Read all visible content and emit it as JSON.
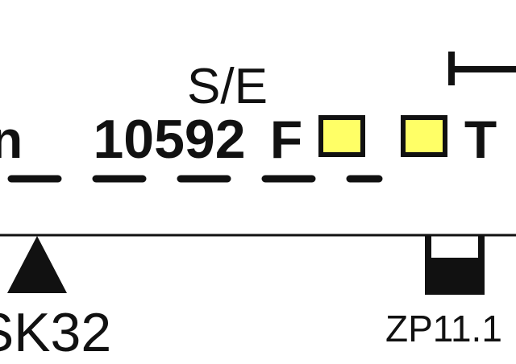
{
  "upper_track": {
    "direction_label": "S/E",
    "train_number": "10592",
    "train_flag": "F",
    "cutoff_glyph": "n",
    "trailing_flag": "T",
    "status_boxes": [
      {
        "name": "status-box-1",
        "fill": "#ffff66"
      },
      {
        "name": "status-box-2",
        "fill": "#ffff66"
      }
    ],
    "line_style": "dashed"
  },
  "main_line": {
    "line_style": "solid"
  },
  "markers": {
    "signal_label": "SK32",
    "signal_icon": "triangle-signal-icon",
    "track_circuit_label": "ZP11.1",
    "track_circuit_icon": "bucket-icon"
  },
  "colors": {
    "lines": "#111111",
    "status_box": "#ffff66",
    "background": "#ffffff"
  }
}
